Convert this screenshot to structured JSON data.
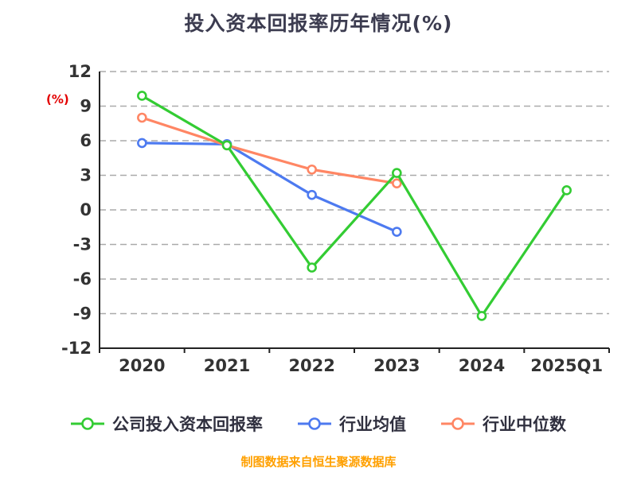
{
  "chart": {
    "title": "投入资本回报率历年情况(%)",
    "ylabel": "(%)",
    "footer": "制图数据来自恒生聚源数据库",
    "title_color": "#3c3c50",
    "ylabel_color": "#e30000",
    "footer_color": "#ffa000",
    "axis_text_color": "#333333",
    "axis_line_color": "#222222",
    "grid_color": "#aaaaaa"
  },
  "chart_data": {
    "type": "line",
    "categories": [
      "2020",
      "2021",
      "2022",
      "2023",
      "2024",
      "2025Q1"
    ],
    "series": [
      {
        "id": "company-roic",
        "name": "公司投入资本回报率",
        "color": "#33cc33",
        "values": [
          9.9,
          5.6,
          -5.0,
          3.2,
          -9.2,
          1.7
        ]
      },
      {
        "id": "industry-mean",
        "name": "行业均值",
        "color": "#4d7af0",
        "values": [
          5.8,
          5.7,
          1.3,
          -1.9,
          null,
          null
        ]
      },
      {
        "id": "industry-median",
        "name": "行业中位数",
        "color": "#ff8664",
        "values": [
          8.0,
          5.6,
          3.5,
          2.3,
          null,
          null
        ]
      }
    ],
    "title": "投入资本回报率历年情况(%)",
    "xlabel": "",
    "ylabel": "(%)",
    "ylim": [
      -12,
      12
    ],
    "ytick_step": 3,
    "grid": "horizontal-dashed",
    "legend_position": "bottom",
    "marker": "open-circle"
  }
}
